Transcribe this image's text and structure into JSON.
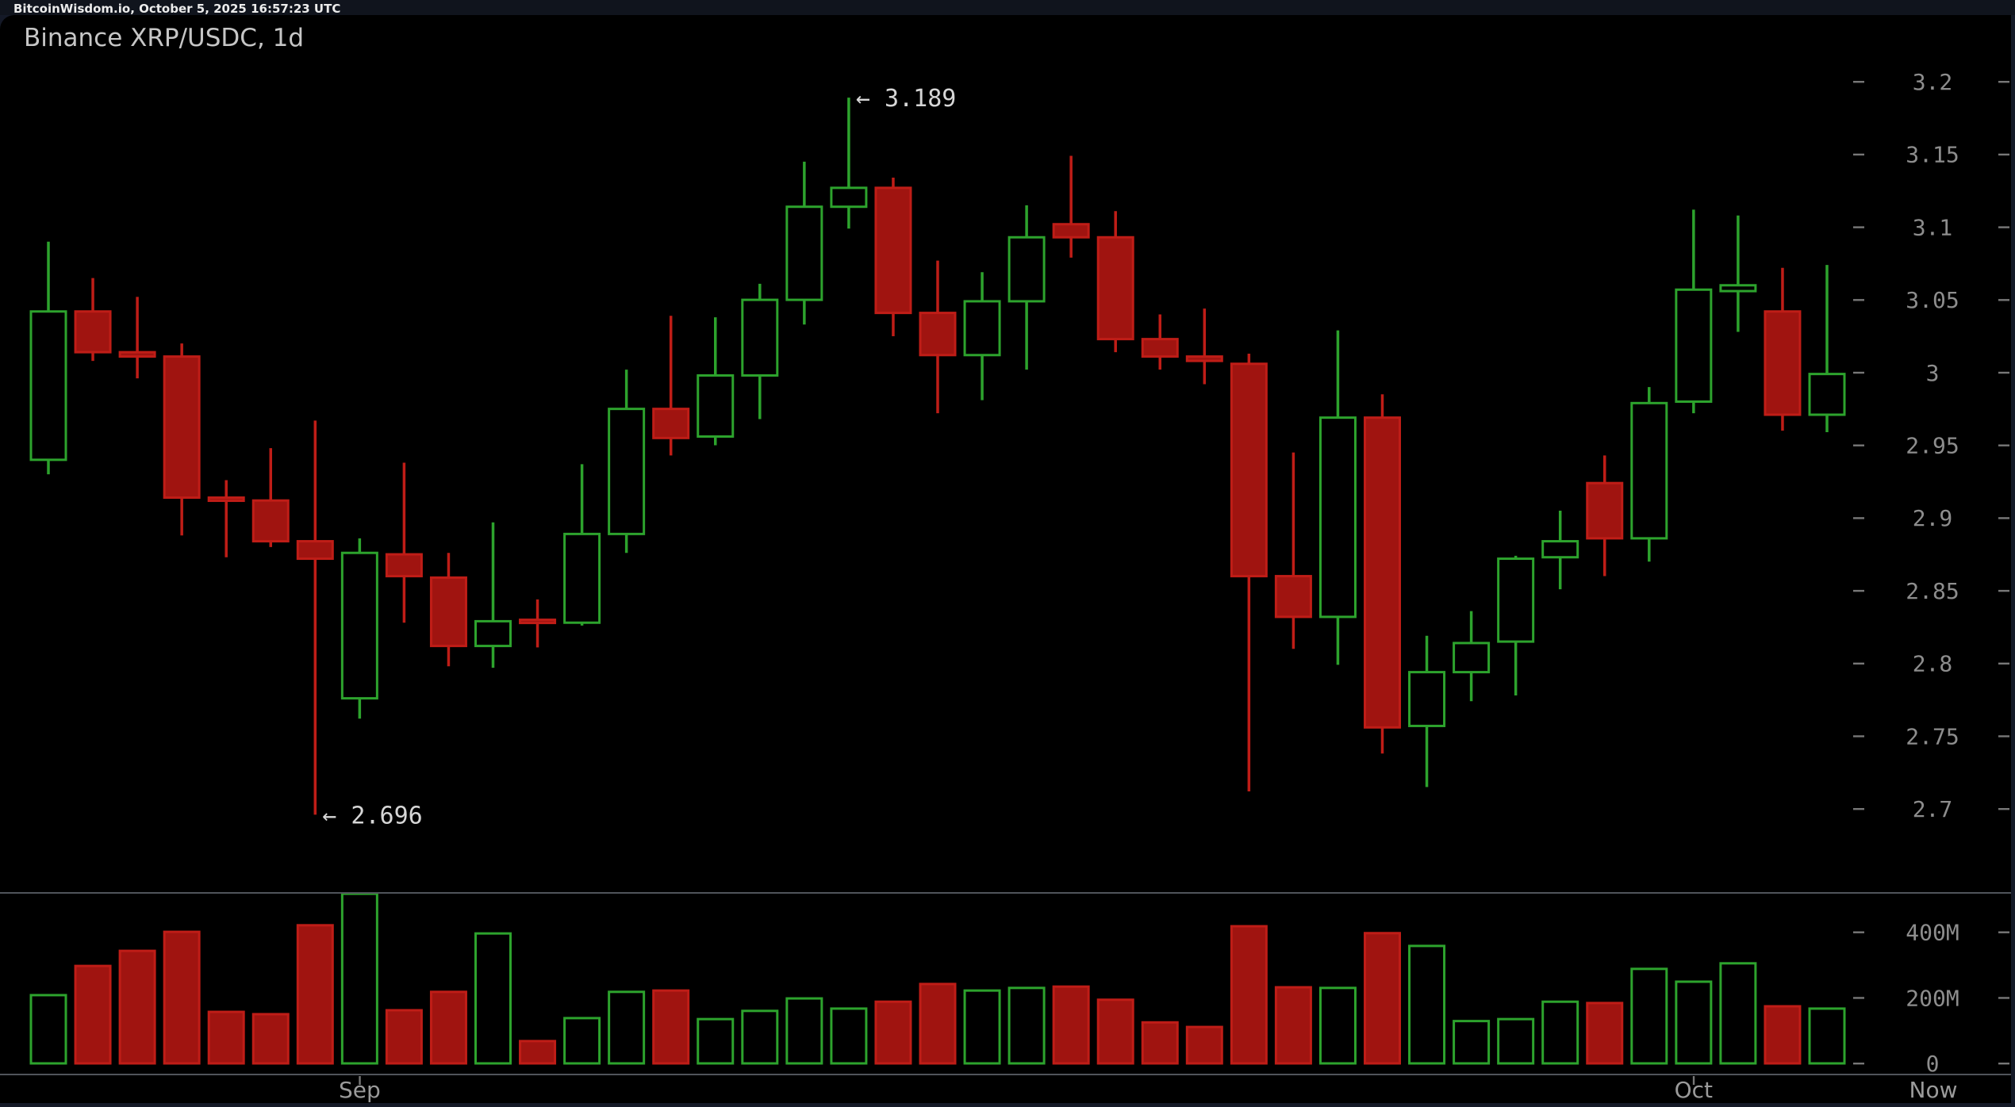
{
  "header": {
    "text": "BitcoinWisdom.io, October 5, 2025 16:57:23 UTC"
  },
  "chart": {
    "title": "Binance XRP/USDC, 1d"
  },
  "colors": {
    "background": "#000000",
    "frame": "#141927",
    "up_stroke": "#2da32d",
    "down_fill": "#a01410",
    "down_stroke": "#bf1d17",
    "axis_text": "#8d8d8d",
    "time_text": "#9a9a9a",
    "annotation_text": "#d6d6d6",
    "divider": "#50545a",
    "tick_dash": "#777777"
  },
  "chart_data": {
    "type": "candlestick+volume",
    "title": "Binance XRP/USDC, 1d",
    "interval": "1d",
    "legend_position": "none",
    "grid": false,
    "price_axis": {
      "side": "right",
      "min": 2.66,
      "max": 3.23,
      "ticks": [
        {
          "label": "3.2",
          "value": 3.2
        },
        {
          "label": "3.15",
          "value": 3.15
        },
        {
          "label": "3.1",
          "value": 3.1
        },
        {
          "label": "3.05",
          "value": 3.05
        },
        {
          "label": "3",
          "value": 3.0
        },
        {
          "label": "2.95",
          "value": 2.95
        },
        {
          "label": "2.9",
          "value": 2.9
        },
        {
          "label": "2.85",
          "value": 2.85
        },
        {
          "label": "2.8",
          "value": 2.8
        },
        {
          "label": "2.75",
          "value": 2.75
        },
        {
          "label": "2.7",
          "value": 2.7
        }
      ]
    },
    "volume_axis": {
      "side": "right",
      "unit": "M",
      "ticks": [
        {
          "label": "400M",
          "value": 400
        },
        {
          "label": "200M",
          "value": 200
        },
        {
          "label": "0",
          "value": 0
        }
      ]
    },
    "time_ticks": [
      {
        "label": "Sep",
        "candle_index": 7
      },
      {
        "label": "Oct",
        "candle_index": 37
      }
    ],
    "now_label": "Now",
    "annotations": [
      {
        "kind": "high",
        "text": "← 3.189",
        "price": 3.189,
        "candle_index": 18
      },
      {
        "kind": "low",
        "text": "← 2.696",
        "price": 2.696,
        "candle_index": 6
      }
    ],
    "columns": [
      "date",
      "open",
      "high",
      "low",
      "close",
      "volume_M"
    ],
    "candles": [
      [
        "Aug 25",
        2.94,
        3.09,
        2.93,
        3.042,
        208
      ],
      [
        "Aug 26",
        3.042,
        3.065,
        3.008,
        3.014,
        297
      ],
      [
        "Aug 27",
        3.014,
        3.052,
        2.996,
        3.011,
        343
      ],
      [
        "Aug 28",
        3.011,
        3.02,
        2.888,
        2.914,
        401
      ],
      [
        "Aug 29",
        2.914,
        2.926,
        2.873,
        2.912,
        157
      ],
      [
        "Aug 30",
        2.912,
        2.948,
        2.88,
        2.884,
        150
      ],
      [
        "Aug 31",
        2.884,
        2.967,
        2.696,
        2.872,
        421
      ],
      [
        "Sep 1",
        2.776,
        2.886,
        2.762,
        2.876,
        517
      ],
      [
        "Sep 2",
        2.875,
        2.938,
        2.828,
        2.86,
        162
      ],
      [
        "Sep 3",
        2.859,
        2.876,
        2.798,
        2.812,
        218
      ],
      [
        "Sep 4",
        2.812,
        2.897,
        2.797,
        2.829,
        396
      ],
      [
        "Sep 5",
        2.83,
        2.844,
        2.811,
        2.828,
        68
      ],
      [
        "Sep 6",
        2.828,
        2.937,
        2.826,
        2.889,
        138
      ],
      [
        "Sep 7",
        2.889,
        3.002,
        2.876,
        2.975,
        218
      ],
      [
        "Sep 8",
        2.975,
        3.039,
        2.943,
        2.955,
        222
      ],
      [
        "Sep 9",
        2.956,
        3.038,
        2.95,
        2.998,
        135
      ],
      [
        "Sep 10",
        2.998,
        3.061,
        2.968,
        3.05,
        160
      ],
      [
        "Sep 11",
        3.05,
        3.145,
        3.033,
        3.114,
        198
      ],
      [
        "Sep 12",
        3.114,
        3.189,
        3.099,
        3.127,
        167
      ],
      [
        "Sep 13",
        3.127,
        3.134,
        3.025,
        3.041,
        188
      ],
      [
        "Sep 14",
        3.041,
        3.077,
        2.972,
        3.012,
        242
      ],
      [
        "Sep 15",
        3.012,
        3.069,
        2.981,
        3.049,
        222
      ],
      [
        "Sep 16",
        3.049,
        3.115,
        3.002,
        3.093,
        230
      ],
      [
        "Sep 17",
        3.102,
        3.149,
        3.079,
        3.093,
        234
      ],
      [
        "Sep 18",
        3.093,
        3.111,
        3.014,
        3.023,
        194
      ],
      [
        "Sep 19",
        3.023,
        3.04,
        3.002,
        3.011,
        125
      ],
      [
        "Sep 20",
        3.011,
        3.044,
        2.992,
        3.008,
        111
      ],
      [
        "Sep 21",
        3.006,
        3.013,
        2.712,
        2.86,
        418
      ],
      [
        "Sep 22",
        2.86,
        2.945,
        2.81,
        2.832,
        232
      ],
      [
        "Sep 23",
        2.832,
        3.029,
        2.799,
        2.969,
        230
      ],
      [
        "Sep 24",
        2.969,
        2.985,
        2.738,
        2.756,
        397
      ],
      [
        "Sep 25",
        2.757,
        2.819,
        2.715,
        2.794,
        358
      ],
      [
        "Sep 26",
        2.794,
        2.836,
        2.774,
        2.814,
        129
      ],
      [
        "Sep 27",
        2.815,
        2.874,
        2.778,
        2.872,
        135
      ],
      [
        "Sep 28",
        2.873,
        2.905,
        2.851,
        2.884,
        188
      ],
      [
        "Sep 29",
        2.924,
        2.943,
        2.86,
        2.886,
        184
      ],
      [
        "Sep 30",
        2.886,
        2.99,
        2.87,
        2.979,
        288
      ],
      [
        "Oct 1",
        2.98,
        3.112,
        2.972,
        3.057,
        249
      ],
      [
        "Oct 2",
        3.056,
        3.108,
        3.028,
        3.06,
        305
      ],
      [
        "Oct 3",
        3.042,
        3.072,
        2.96,
        2.971,
        174
      ],
      [
        "Oct 4",
        2.971,
        3.074,
        2.959,
        2.999,
        167
      ]
    ]
  }
}
